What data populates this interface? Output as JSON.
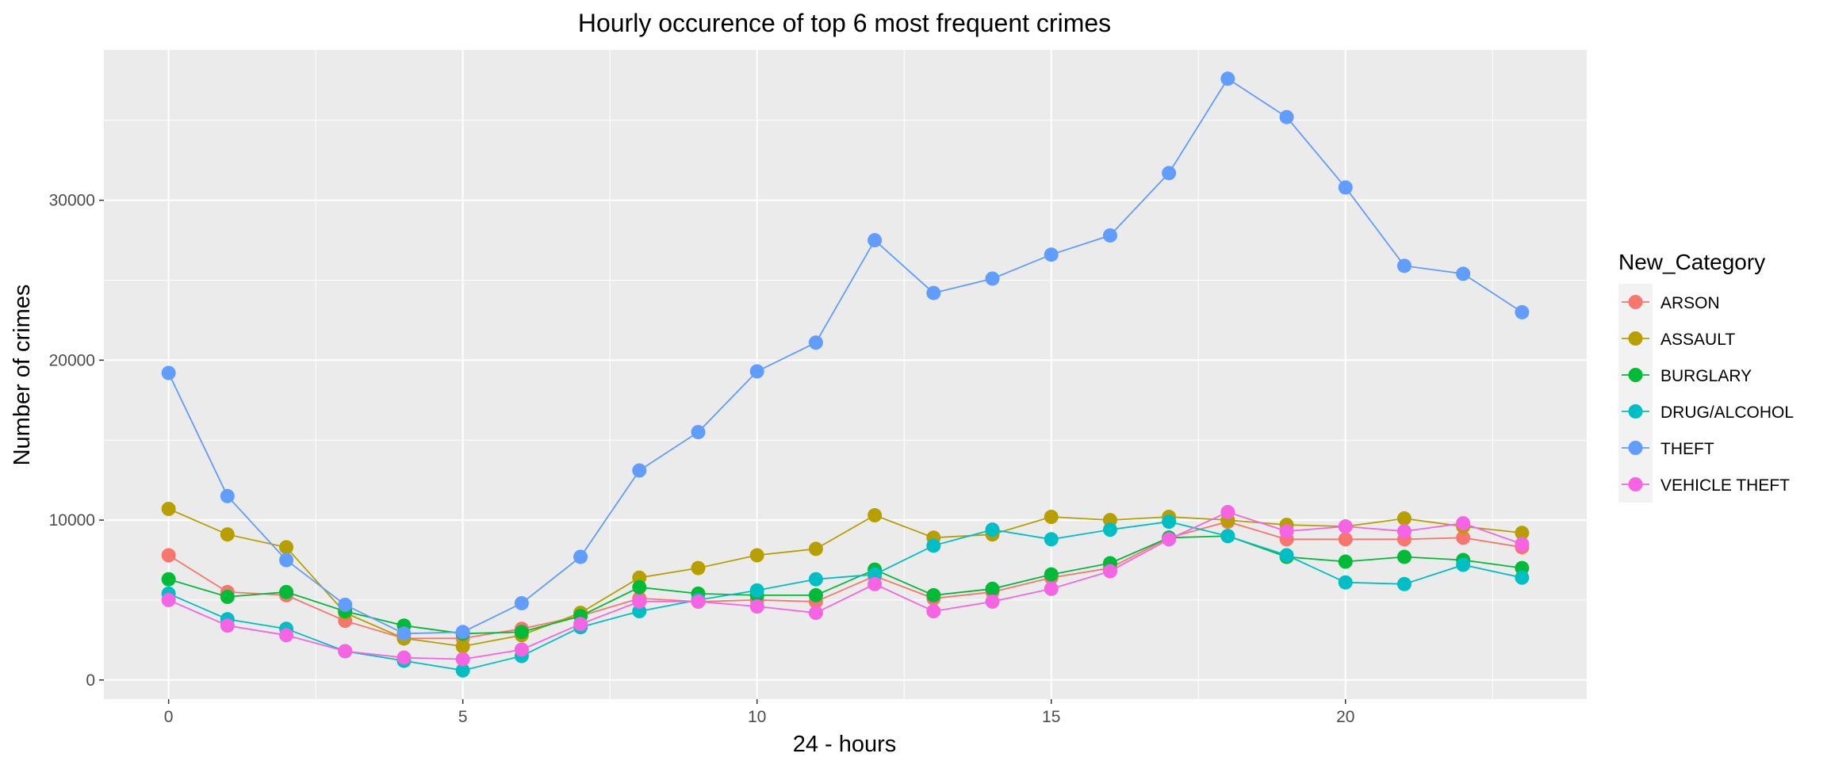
{
  "chart_data": {
    "type": "line",
    "title": "Hourly occurence of top 6 most frequent crimes",
    "xlabel": "24 - hours",
    "ylabel": "Number of crimes",
    "xlim": [
      -1.1,
      24.1
    ],
    "ylim": [
      -1200,
      39400
    ],
    "x_ticks": [
      0,
      5,
      10,
      15,
      20
    ],
    "y_ticks": [
      0,
      10000,
      20000,
      30000
    ],
    "grid": true,
    "legend_title": "New_Category",
    "legend_position": "right",
    "x": [
      0,
      1,
      2,
      3,
      4,
      5,
      6,
      7,
      8,
      9,
      10,
      11,
      12,
      13,
      14,
      15,
      16,
      17,
      18,
      19,
      20,
      21,
      22,
      23
    ],
    "series": [
      {
        "name": "ARSON",
        "color": "#F8766D",
        "values": [
          7800,
          5500,
          5300,
          3700,
          2600,
          2600,
          3200,
          4000,
          5100,
          4900,
          5000,
          4900,
          6500,
          5100,
          5500,
          6400,
          7000,
          8900,
          9900,
          8800,
          8800,
          8800,
          8900,
          8300
        ]
      },
      {
        "name": "ASSAULT",
        "color": "#B79F00",
        "values": [
          10700,
          9100,
          8300,
          4200,
          2600,
          2100,
          2800,
          4200,
          6400,
          7000,
          7800,
          8200,
          10300,
          8900,
          9100,
          10200,
          10000,
          10200,
          10000,
          9700,
          9600,
          10100,
          9600,
          9200
        ]
      },
      {
        "name": "BURGLARY",
        "color": "#00BA38",
        "values": [
          6300,
          5200,
          5500,
          4300,
          3400,
          2900,
          3000,
          4000,
          5800,
          5400,
          5300,
          5300,
          6900,
          5300,
          5700,
          6600,
          7300,
          8900,
          9000,
          7700,
          7400,
          7700,
          7500,
          7000
        ]
      },
      {
        "name": "DRUG/ALCOHOL",
        "color": "#00BFC4",
        "values": [
          5400,
          3800,
          3200,
          1800,
          1200,
          600,
          1500,
          3300,
          4300,
          5000,
          5600,
          6300,
          6600,
          8400,
          9400,
          8800,
          9400,
          9900,
          9000,
          7800,
          6100,
          6000,
          7200,
          6400
        ]
      },
      {
        "name": "THEFT",
        "color": "#619CFF",
        "values": [
          19200,
          11500,
          7500,
          4700,
          2900,
          3000,
          4800,
          7700,
          13100,
          15500,
          19300,
          21100,
          27500,
          24200,
          25100,
          26600,
          27800,
          31700,
          37600,
          35200,
          30800,
          25900,
          25400,
          23000
        ]
      },
      {
        "name": "VEHICLE THEFT",
        "color": "#F564E3",
        "values": [
          5000,
          3400,
          2800,
          1800,
          1400,
          1300,
          1900,
          3500,
          4900,
          4900,
          4600,
          4200,
          6000,
          4300,
          4900,
          5700,
          6800,
          8800,
          10500,
          9300,
          9600,
          9300,
          9800,
          8500
        ]
      }
    ]
  }
}
